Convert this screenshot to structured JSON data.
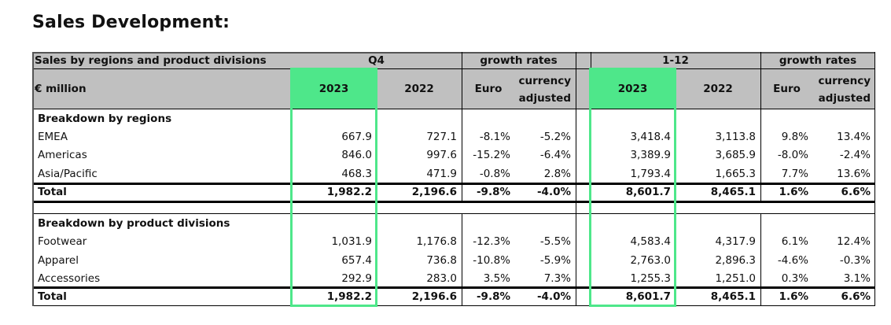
{
  "title": "Sales Development:",
  "header": {
    "caption": "Sales by regions and product divisions",
    "unit": "€ million",
    "q4_label": "Q4",
    "growth_label": "growth rates",
    "fy_label": "1-12",
    "growth_label_2": "growth rates",
    "year_current": "2023",
    "year_prior": "2022",
    "euro_label": "Euro",
    "currency_line1": "currency",
    "currency_line2": "adjusted"
  },
  "sections": [
    {
      "title": "Breakdown by regions",
      "rows": [
        {
          "label": "EMEA",
          "q4_2023": "667.9",
          "q4_2022": "727.1",
          "q4_euro": "-8.1%",
          "q4_fx": "-5.2%",
          "fy_2023": "3,418.4",
          "fy_2022": "3,113.8",
          "fy_euro": "9.8%",
          "fy_fx": "13.4%"
        },
        {
          "label": "Americas",
          "q4_2023": "846.0",
          "q4_2022": "997.6",
          "q4_euro": "-15.2%",
          "q4_fx": "-6.4%",
          "fy_2023": "3,389.9",
          "fy_2022": "3,685.9",
          "fy_euro": "-8.0%",
          "fy_fx": "-2.4%"
        },
        {
          "label": "Asia/Pacific",
          "q4_2023": "468.3",
          "q4_2022": "471.9",
          "q4_euro": "-0.8%",
          "q4_fx": "2.8%",
          "fy_2023": "1,793.4",
          "fy_2022": "1,665.3",
          "fy_euro": "7.7%",
          "fy_fx": "13.6%"
        }
      ],
      "total": {
        "label": "Total",
        "q4_2023": "1,982.2",
        "q4_2022": "2,196.6",
        "q4_euro": "-9.8%",
        "q4_fx": "-4.0%",
        "fy_2023": "8,601.7",
        "fy_2022": "8,465.1",
        "fy_euro": "1.6%",
        "fy_fx": "6.6%"
      }
    },
    {
      "title": "Breakdown by product divisions",
      "rows": [
        {
          "label": "Footwear",
          "q4_2023": "1,031.9",
          "q4_2022": "1,176.8",
          "q4_euro": "-12.3%",
          "q4_fx": "-5.5%",
          "fy_2023": "4,583.4",
          "fy_2022": "4,317.9",
          "fy_euro": "6.1%",
          "fy_fx": "12.4%"
        },
        {
          "label": "Apparel",
          "q4_2023": "657.4",
          "q4_2022": "736.8",
          "q4_euro": "-10.8%",
          "q4_fx": "-5.9%",
          "fy_2023": "2,763.0",
          "fy_2022": "2,896.3",
          "fy_euro": "-4.6%",
          "fy_fx": "-0.3%"
        },
        {
          "label": "Accessories",
          "q4_2023": "292.9",
          "q4_2022": "283.0",
          "q4_euro": "3.5%",
          "q4_fx": "7.3%",
          "fy_2023": "1,255.3",
          "fy_2022": "1,251.0",
          "fy_euro": "0.3%",
          "fy_fx": "3.1%"
        }
      ],
      "total": {
        "label": "Total",
        "q4_2023": "1,982.2",
        "q4_2022": "2,196.6",
        "q4_euro": "-9.8%",
        "q4_fx": "-4.0%",
        "fy_2023": "8,601.7",
        "fy_2022": "8,465.1",
        "fy_euro": "1.6%",
        "fy_fx": "6.6%"
      }
    }
  ],
  "colors": {
    "highlight": "#4ee78a",
    "header_bg": "#c0c0c0"
  }
}
